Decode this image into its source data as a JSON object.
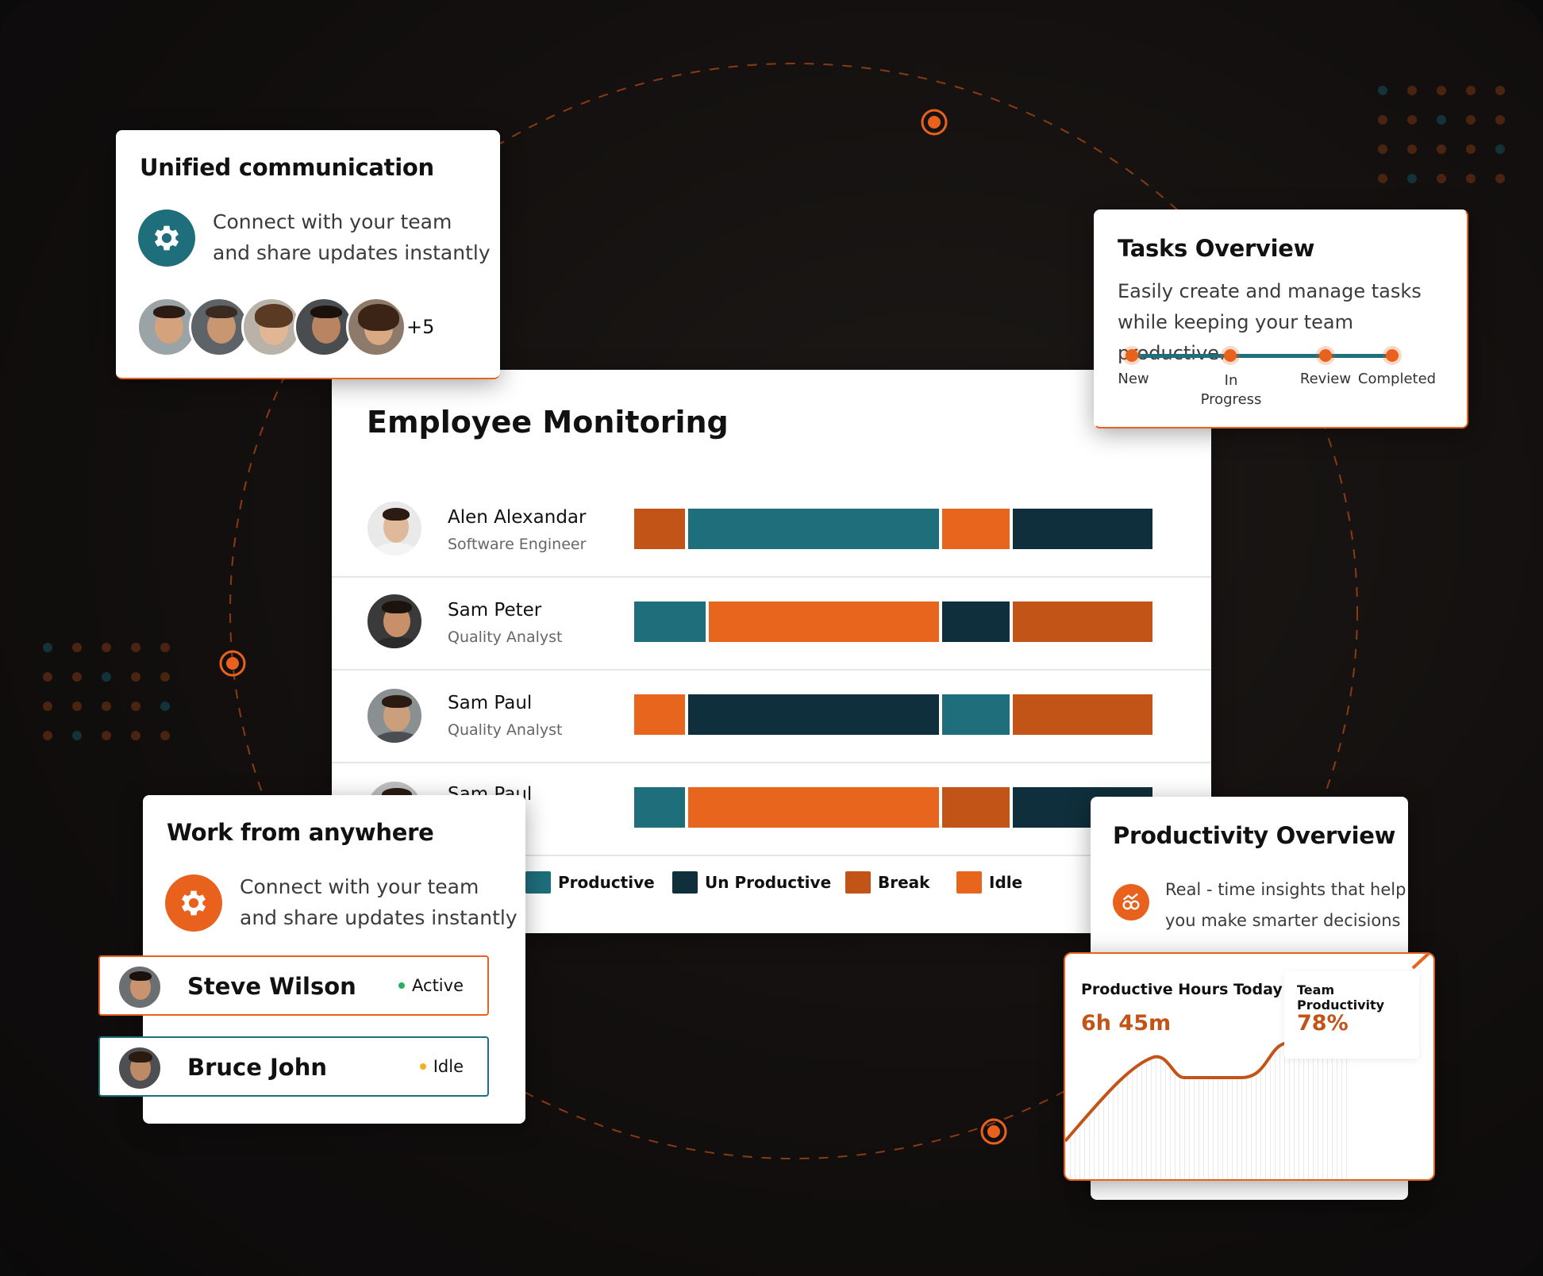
{
  "unified": {
    "title": "Unified communication",
    "desc_line1": "Connect with your team",
    "desc_line2": "and share updates instantly",
    "extra_count": "+5",
    "icon": "gear-icon"
  },
  "tasks": {
    "title": "Tasks Overview",
    "desc_line1": "Easily create and manage tasks",
    "desc_line2": "while keeping your team productive.",
    "stages": [
      "New",
      "In Progress",
      "Review",
      "Completed"
    ]
  },
  "monitoring": {
    "title": "Employee Monitoring",
    "employees": [
      {
        "name": "Alen Alexandar",
        "role": "Software Engineer"
      },
      {
        "name": "Sam Peter",
        "role": "Quality Analyst"
      },
      {
        "name": "Sam Paul",
        "role": "Quality Analyst"
      },
      {
        "name": "Sam Paul",
        "role": ""
      }
    ],
    "legend": [
      "Productive",
      "Un Productive",
      "Break",
      "Idle"
    ],
    "colors": {
      "productive": "#1f6e7c",
      "unproductive": "#0f2f3c",
      "break": "#c25418",
      "idle": "#e8651e"
    }
  },
  "wfa": {
    "title": "Work from anywhere",
    "desc_line1": "Connect with your team",
    "desc_line2": "and share updates instantly",
    "people": [
      {
        "name": "Steve Wilson",
        "status": "Active",
        "status_color": "#22b35a"
      },
      {
        "name": "Bruce John",
        "status": "Idle",
        "status_color": "#f2b01e"
      }
    ]
  },
  "productivity": {
    "title": "Productivity Overview",
    "desc_line1": "Real - time insights that help",
    "desc_line2": "you make smarter decisions",
    "hours_label": "Productive Hours Today",
    "hours_value": "6h 45m",
    "team_label": "Team Productivity",
    "team_value": "78%"
  },
  "accent": "#e8621d",
  "teal": "#1f6e7c"
}
